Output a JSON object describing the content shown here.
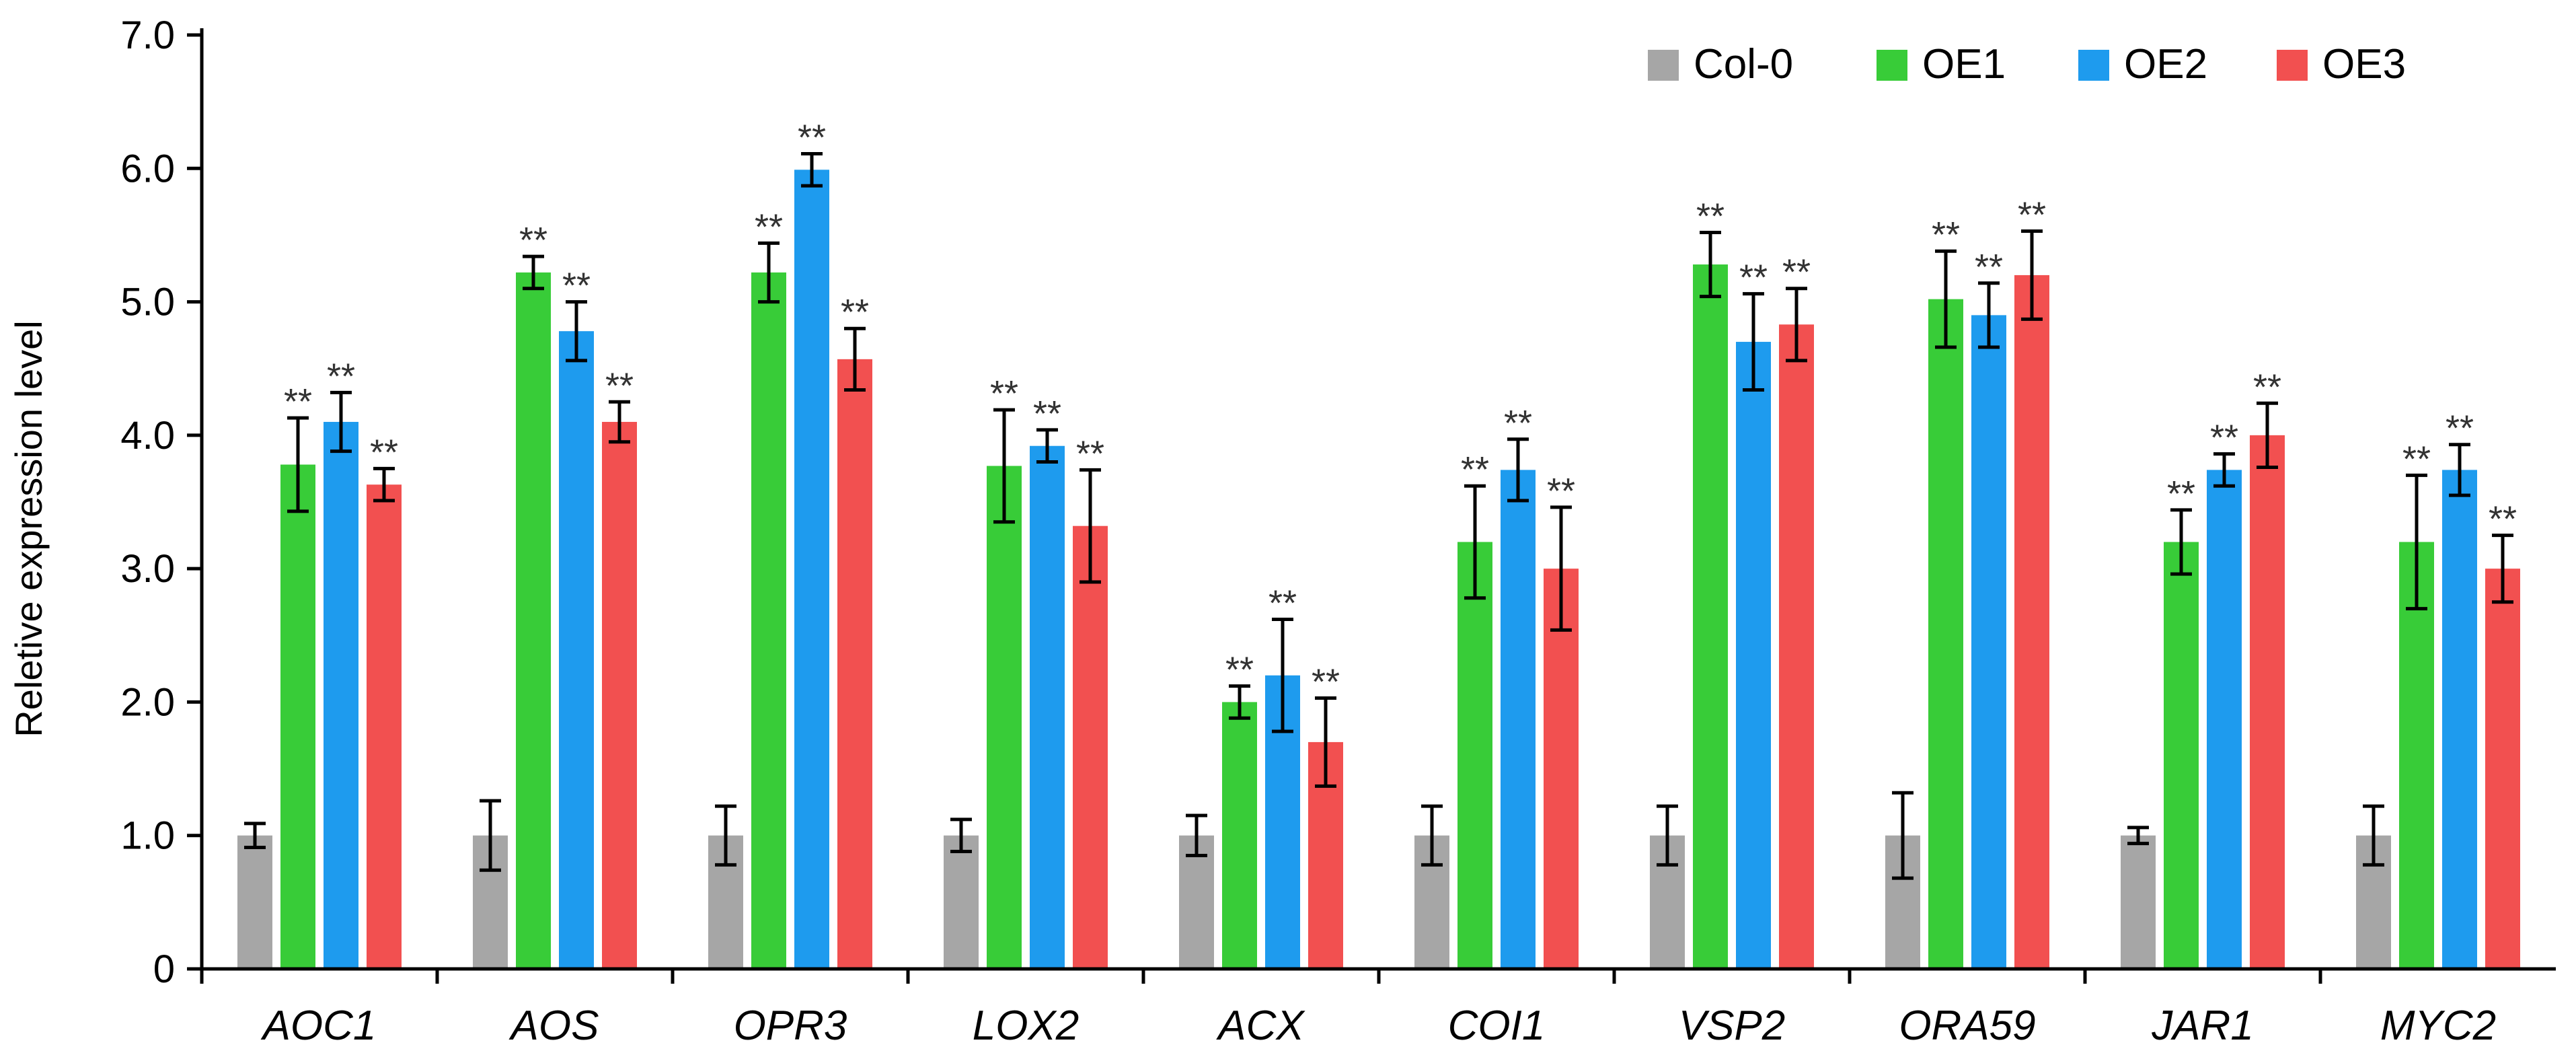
{
  "chart_data": {
    "type": "bar",
    "title": "",
    "xlabel": "",
    "ylabel": "Reletive expression level",
    "ylim": [
      0,
      7.0
    ],
    "yticks": [
      "0",
      "1.0",
      "2.0",
      "3.0",
      "4.0",
      "5.0",
      "6.0",
      "7.0"
    ],
    "legend_position": "top-right",
    "categories": [
      "AOC1",
      "AOS",
      "OPR3",
      "LOX2",
      "ACX",
      "COI1",
      "VSP2",
      "ORA59",
      "JAR1",
      "MYC2"
    ],
    "series": [
      {
        "name": "Col-0",
        "color": "#a6a6a6",
        "values": [
          1.0,
          1.0,
          1.0,
          1.0,
          1.0,
          1.0,
          1.0,
          1.0,
          1.0,
          1.0
        ],
        "errors": [
          0.09,
          0.26,
          0.22,
          0.12,
          0.15,
          0.22,
          0.22,
          0.32,
          0.06,
          0.22
        ],
        "significance": [
          "",
          "",
          "",
          "",
          "",
          "",
          "",
          "",
          "",
          ""
        ]
      },
      {
        "name": "OE1",
        "color": "#38cc38",
        "values": [
          3.78,
          5.22,
          5.22,
          3.77,
          2.0,
          3.2,
          5.28,
          5.02,
          3.2,
          3.2
        ],
        "errors": [
          0.35,
          0.12,
          0.22,
          0.42,
          0.12,
          0.42,
          0.24,
          0.36,
          0.24,
          0.5
        ],
        "significance": [
          "**",
          "**",
          "**",
          "**",
          "**",
          "**",
          "**",
          "**",
          "**",
          "**"
        ]
      },
      {
        "name": "OE2",
        "color": "#1e9bee",
        "values": [
          4.1,
          4.78,
          5.99,
          3.92,
          2.2,
          3.74,
          4.7,
          4.9,
          3.74,
          3.74
        ],
        "errors": [
          0.22,
          0.22,
          0.12,
          0.12,
          0.42,
          0.23,
          0.36,
          0.24,
          0.12,
          0.19
        ],
        "significance": [
          "**",
          "**",
          "**",
          "**",
          "**",
          "**",
          "**",
          "**",
          "**",
          "**"
        ]
      },
      {
        "name": "OE3",
        "color": "#f25050",
        "values": [
          3.63,
          4.1,
          4.57,
          3.32,
          1.7,
          3.0,
          4.83,
          5.2,
          4.0,
          3.0
        ],
        "errors": [
          0.12,
          0.15,
          0.23,
          0.42,
          0.33,
          0.46,
          0.27,
          0.33,
          0.24,
          0.25
        ],
        "significance": [
          "**",
          "**",
          "**",
          "**",
          "**",
          "**",
          "**",
          "**",
          "**",
          "**"
        ]
      }
    ]
  }
}
